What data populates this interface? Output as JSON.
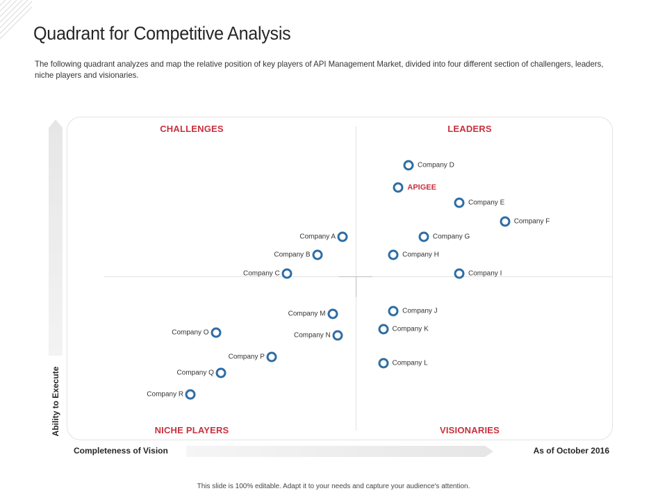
{
  "title": "Quadrant for Competitive Analysis",
  "description": "The following quadrant analyzes and map the relative position of  key players of API Management Market, divided into four different section of challengers, leaders, niche players and visionaries.",
  "quadrants": {
    "top_left": "CHALLENGES",
    "top_right": "LEADERS",
    "bottom_left": "NICHE PLAYERS",
    "bottom_right": "VISIONARIES"
  },
  "axes": {
    "y_label": "Ability to Execute",
    "x_label": "Completeness of Vision",
    "as_of": "As of October 2016"
  },
  "colors": {
    "accent": "#c8303d",
    "marker": "#2e6da4"
  },
  "chart_data": {
    "type": "scatter",
    "title": "Quadrant for Competitive Analysis",
    "xlabel": "Completeness of Vision",
    "ylabel": "Ability to Execute",
    "xlim": [
      0,
      100
    ],
    "ylim": [
      0,
      100
    ],
    "points": [
      {
        "name": "Company D",
        "x": 60,
        "y": 88,
        "label_side": "right",
        "highlight": false
      },
      {
        "name": "APIGEE",
        "x": 58,
        "y": 81,
        "label_side": "right",
        "highlight": true
      },
      {
        "name": "Company E",
        "x": 70,
        "y": 76,
        "label_side": "right",
        "highlight": false
      },
      {
        "name": "Company F",
        "x": 79,
        "y": 70,
        "label_side": "right",
        "highlight": false
      },
      {
        "name": "Company A",
        "x": 47,
        "y": 65,
        "label_side": "left",
        "highlight": false
      },
      {
        "name": "Company G",
        "x": 63,
        "y": 65,
        "label_side": "right",
        "highlight": false
      },
      {
        "name": "Company B",
        "x": 42,
        "y": 59,
        "label_side": "left",
        "highlight": false
      },
      {
        "name": "Company H",
        "x": 57,
        "y": 59,
        "label_side": "right",
        "highlight": false
      },
      {
        "name": "Company C",
        "x": 36,
        "y": 53,
        "label_side": "left",
        "highlight": false
      },
      {
        "name": "Company I",
        "x": 70,
        "y": 53,
        "label_side": "right",
        "highlight": false
      },
      {
        "name": "Company J",
        "x": 57,
        "y": 41,
        "label_side": "right",
        "highlight": false
      },
      {
        "name": "Company M",
        "x": 45,
        "y": 40,
        "label_side": "left",
        "highlight": false
      },
      {
        "name": "Company K",
        "x": 55,
        "y": 35,
        "label_side": "right",
        "highlight": false
      },
      {
        "name": "Company O",
        "x": 22,
        "y": 34,
        "label_side": "left",
        "highlight": false
      },
      {
        "name": "Company N",
        "x": 46,
        "y": 33,
        "label_side": "left",
        "highlight": false
      },
      {
        "name": "Company P",
        "x": 33,
        "y": 26,
        "label_side": "left",
        "highlight": false
      },
      {
        "name": "Company L",
        "x": 55,
        "y": 24,
        "label_side": "right",
        "highlight": false
      },
      {
        "name": "Company Q",
        "x": 23,
        "y": 21,
        "label_side": "left",
        "highlight": false
      },
      {
        "name": "Company R",
        "x": 17,
        "y": 14,
        "label_side": "left",
        "highlight": false
      }
    ]
  },
  "footer": "This slide is 100% editable. Adapt it to your needs and capture your audience's attention."
}
